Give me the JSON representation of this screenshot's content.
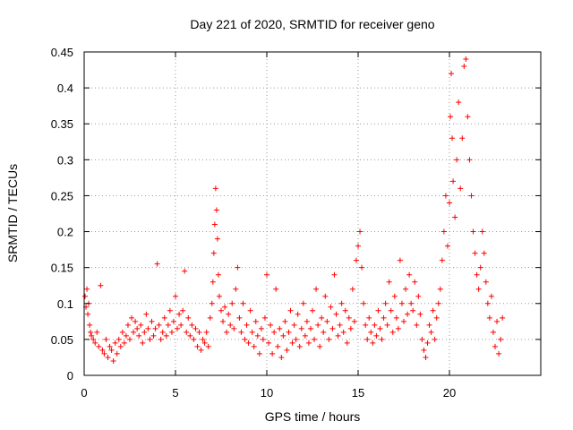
{
  "chart_data": {
    "type": "scatter",
    "title": "Day 221 of 2020, SRMTID for receiver geno",
    "xlabel": "GPS time / hours",
    "ylabel": "SRMTID / TECUs",
    "xlim": [
      0,
      25
    ],
    "ylim": [
      0,
      0.45
    ],
    "xticks": [
      0,
      5,
      10,
      15,
      20
    ],
    "xtick_labels": [
      "0",
      "5",
      "10",
      "15",
      "20"
    ],
    "yticks": [
      0,
      0.05,
      0.1,
      0.15,
      0.2,
      0.25,
      0.3,
      0.35,
      0.4,
      0.45
    ],
    "ytick_labels": [
      "0",
      "0.05",
      "0.1",
      "0.15",
      "0.2",
      "0.25",
      "0.3",
      "0.35",
      "0.4",
      "0.45"
    ],
    "grid": true,
    "marker": "+",
    "marker_color": "#ff0000",
    "series": [
      {
        "name": "SRMTID",
        "points": [
          [
            0.05,
            0.11
          ],
          [
            0.1,
            0.095
          ],
          [
            0.15,
            0.12
          ],
          [
            0.2,
            0.085
          ],
          [
            0.25,
            0.1
          ],
          [
            0.3,
            0.07
          ],
          [
            0.35,
            0.06
          ],
          [
            0.4,
            0.055
          ],
          [
            0.5,
            0.05
          ],
          [
            0.6,
            0.045
          ],
          [
            0.7,
            0.06
          ],
          [
            0.8,
            0.04
          ],
          [
            0.9,
            0.125
          ],
          [
            1.0,
            0.035
          ],
          [
            1.1,
            0.03
          ],
          [
            1.2,
            0.05
          ],
          [
            1.3,
            0.025
          ],
          [
            1.4,
            0.04
          ],
          [
            1.5,
            0.035
          ],
          [
            1.6,
            0.02
          ],
          [
            1.7,
            0.045
          ],
          [
            1.8,
            0.03
          ],
          [
            1.9,
            0.05
          ],
          [
            2.0,
            0.04
          ],
          [
            2.1,
            0.06
          ],
          [
            2.2,
            0.045
          ],
          [
            2.3,
            0.055
          ],
          [
            2.4,
            0.07
          ],
          [
            2.5,
            0.05
          ],
          [
            2.6,
            0.08
          ],
          [
            2.7,
            0.06
          ],
          [
            2.8,
            0.075
          ],
          [
            2.9,
            0.065
          ],
          [
            3.0,
            0.055
          ],
          [
            3.1,
            0.07
          ],
          [
            3.2,
            0.045
          ],
          [
            3.3,
            0.06
          ],
          [
            3.4,
            0.085
          ],
          [
            3.5,
            0.065
          ],
          [
            3.6,
            0.05
          ],
          [
            3.7,
            0.075
          ],
          [
            3.8,
            0.055
          ],
          [
            3.9,
            0.065
          ],
          [
            4.0,
            0.155
          ],
          [
            4.1,
            0.07
          ],
          [
            4.2,
            0.05
          ],
          [
            4.3,
            0.06
          ],
          [
            4.4,
            0.08
          ],
          [
            4.5,
            0.055
          ],
          [
            4.6,
            0.07
          ],
          [
            4.7,
            0.09
          ],
          [
            4.8,
            0.06
          ],
          [
            4.9,
            0.075
          ],
          [
            5.0,
            0.11
          ],
          [
            5.1,
            0.065
          ],
          [
            5.2,
            0.085
          ],
          [
            5.3,
            0.07
          ],
          [
            5.4,
            0.09
          ],
          [
            5.5,
            0.145
          ],
          [
            5.6,
            0.06
          ],
          [
            5.7,
            0.08
          ],
          [
            5.8,
            0.055
          ],
          [
            5.9,
            0.07
          ],
          [
            6.0,
            0.05
          ],
          [
            6.1,
            0.065
          ],
          [
            6.2,
            0.04
          ],
          [
            6.3,
            0.06
          ],
          [
            6.4,
            0.035
          ],
          [
            6.5,
            0.05
          ],
          [
            6.6,
            0.045
          ],
          [
            6.7,
            0.06
          ],
          [
            6.8,
            0.04
          ],
          [
            6.9,
            0.08
          ],
          [
            7.0,
            0.1
          ],
          [
            7.05,
            0.13
          ],
          [
            7.1,
            0.17
          ],
          [
            7.15,
            0.21
          ],
          [
            7.2,
            0.26
          ],
          [
            7.25,
            0.23
          ],
          [
            7.3,
            0.19
          ],
          [
            7.35,
            0.14
          ],
          [
            7.4,
            0.11
          ],
          [
            7.5,
            0.09
          ],
          [
            7.6,
            0.075
          ],
          [
            7.7,
            0.095
          ],
          [
            7.8,
            0.06
          ],
          [
            7.9,
            0.085
          ],
          [
            8.0,
            0.07
          ],
          [
            8.1,
            0.1
          ],
          [
            8.2,
            0.065
          ],
          [
            8.3,
            0.12
          ],
          [
            8.4,
            0.15
          ],
          [
            8.5,
            0.08
          ],
          [
            8.6,
            0.06
          ],
          [
            8.7,
            0.1
          ],
          [
            8.8,
            0.05
          ],
          [
            8.9,
            0.07
          ],
          [
            9.0,
            0.045
          ],
          [
            9.1,
            0.09
          ],
          [
            9.2,
            0.06
          ],
          [
            9.3,
            0.04
          ],
          [
            9.4,
            0.075
          ],
          [
            9.5,
            0.055
          ],
          [
            9.6,
            0.03
          ],
          [
            9.7,
            0.065
          ],
          [
            9.8,
            0.05
          ],
          [
            9.9,
            0.08
          ],
          [
            10.0,
            0.14
          ],
          [
            10.1,
            0.045
          ],
          [
            10.2,
            0.07
          ],
          [
            10.3,
            0.03
          ],
          [
            10.4,
            0.06
          ],
          [
            10.5,
            0.12
          ],
          [
            10.6,
            0.04
          ],
          [
            10.7,
            0.065
          ],
          [
            10.8,
            0.025
          ],
          [
            10.9,
            0.055
          ],
          [
            11.0,
            0.075
          ],
          [
            11.1,
            0.035
          ],
          [
            11.2,
            0.06
          ],
          [
            11.3,
            0.09
          ],
          [
            11.4,
            0.045
          ],
          [
            11.5,
            0.07
          ],
          [
            11.6,
            0.05
          ],
          [
            11.7,
            0.085
          ],
          [
            11.8,
            0.04
          ],
          [
            11.9,
            0.065
          ],
          [
            12.0,
            0.1
          ],
          [
            12.1,
            0.055
          ],
          [
            12.2,
            0.075
          ],
          [
            12.3,
            0.045
          ],
          [
            12.4,
            0.065
          ],
          [
            12.5,
            0.09
          ],
          [
            12.6,
            0.05
          ],
          [
            12.7,
            0.12
          ],
          [
            12.8,
            0.07
          ],
          [
            12.9,
            0.04
          ],
          [
            13.0,
            0.08
          ],
          [
            13.1,
            0.06
          ],
          [
            13.2,
            0.11
          ],
          [
            13.3,
            0.075
          ],
          [
            13.4,
            0.05
          ],
          [
            13.5,
            0.095
          ],
          [
            13.6,
            0.065
          ],
          [
            13.7,
            0.14
          ],
          [
            13.8,
            0.085
          ],
          [
            13.9,
            0.055
          ],
          [
            14.0,
            0.07
          ],
          [
            14.1,
            0.1
          ],
          [
            14.2,
            0.06
          ],
          [
            14.3,
            0.09
          ],
          [
            14.4,
            0.045
          ],
          [
            14.5,
            0.08
          ],
          [
            14.6,
            0.065
          ],
          [
            14.7,
            0.12
          ],
          [
            14.8,
            0.075
          ],
          [
            14.9,
            0.16
          ],
          [
            15.0,
            0.18
          ],
          [
            15.1,
            0.2
          ],
          [
            15.2,
            0.15
          ],
          [
            15.3,
            0.1
          ],
          [
            15.4,
            0.07
          ],
          [
            15.5,
            0.05
          ],
          [
            15.6,
            0.08
          ],
          [
            15.7,
            0.06
          ],
          [
            15.8,
            0.045
          ],
          [
            15.9,
            0.07
          ],
          [
            16.0,
            0.055
          ],
          [
            16.1,
            0.09
          ],
          [
            16.2,
            0.065
          ],
          [
            16.3,
            0.05
          ],
          [
            16.4,
            0.08
          ],
          [
            16.5,
            0.1
          ],
          [
            16.6,
            0.07
          ],
          [
            16.7,
            0.13
          ],
          [
            16.8,
            0.09
          ],
          [
            16.9,
            0.06
          ],
          [
            17.0,
            0.11
          ],
          [
            17.1,
            0.08
          ],
          [
            17.2,
            0.065
          ],
          [
            17.3,
            0.16
          ],
          [
            17.4,
            0.1
          ],
          [
            17.5,
            0.075
          ],
          [
            17.6,
            0.12
          ],
          [
            17.7,
            0.085
          ],
          [
            17.8,
            0.14
          ],
          [
            17.9,
            0.1
          ],
          [
            18.0,
            0.09
          ],
          [
            18.1,
            0.13
          ],
          [
            18.2,
            0.07
          ],
          [
            18.3,
            0.11
          ],
          [
            18.4,
            0.085
          ],
          [
            18.5,
            0.05
          ],
          [
            18.6,
            0.035
          ],
          [
            18.7,
            0.025
          ],
          [
            18.8,
            0.045
          ],
          [
            18.9,
            0.07
          ],
          [
            19.0,
            0.06
          ],
          [
            19.1,
            0.09
          ],
          [
            19.2,
            0.05
          ],
          [
            19.3,
            0.08
          ],
          [
            19.4,
            0.1
          ],
          [
            19.5,
            0.12
          ],
          [
            19.6,
            0.16
          ],
          [
            19.7,
            0.2
          ],
          [
            19.8,
            0.25
          ],
          [
            19.9,
            0.18
          ],
          [
            20.0,
            0.24
          ],
          [
            20.05,
            0.36
          ],
          [
            20.1,
            0.42
          ],
          [
            20.15,
            0.33
          ],
          [
            20.2,
            0.27
          ],
          [
            20.3,
            0.22
          ],
          [
            20.4,
            0.3
          ],
          [
            20.5,
            0.38
          ],
          [
            20.6,
            0.26
          ],
          [
            20.7,
            0.33
          ],
          [
            20.8,
            0.43
          ],
          [
            20.9,
            0.44
          ],
          [
            21.0,
            0.36
          ],
          [
            21.1,
            0.3
          ],
          [
            21.2,
            0.25
          ],
          [
            21.3,
            0.2
          ],
          [
            21.4,
            0.17
          ],
          [
            21.5,
            0.14
          ],
          [
            21.6,
            0.12
          ],
          [
            21.7,
            0.15
          ],
          [
            21.8,
            0.2
          ],
          [
            21.9,
            0.17
          ],
          [
            22.0,
            0.13
          ],
          [
            22.1,
            0.1
          ],
          [
            22.2,
            0.08
          ],
          [
            22.3,
            0.11
          ],
          [
            22.4,
            0.06
          ],
          [
            22.5,
            0.04
          ],
          [
            22.6,
            0.075
          ],
          [
            22.7,
            0.03
          ],
          [
            22.8,
            0.05
          ],
          [
            22.9,
            0.08
          ]
        ]
      }
    ]
  }
}
